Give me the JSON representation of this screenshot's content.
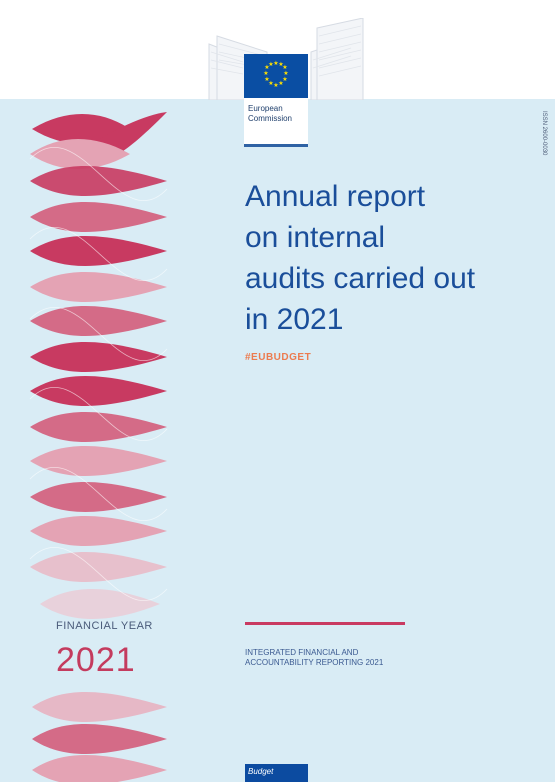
{
  "header": {
    "logo": {
      "brand": "European",
      "brand2": "Commission",
      "accent": "#0a4ea3"
    }
  },
  "side": {
    "issn": "ISSN 2600-0030"
  },
  "title_lines": [
    "Annual report",
    "on internal",
    "audits carried out",
    "in 2021"
  ],
  "hashtag": "#EUBUDGET",
  "financial_year": {
    "label": "FINANCIAL YEAR",
    "year": "2021"
  },
  "subtitle": {
    "line1": "INTEGRATED FINANCIAL AND",
    "line2": "ACCOUNTABILITY REPORTING 2021"
  },
  "badge": {
    "label": "Budget",
    "color": "#0c4ba0"
  },
  "colors": {
    "background_panel": "#d9ecf5",
    "title": "#1a4e9a",
    "hashtag": "#ec7b4f",
    "accent_red": "#c93a61"
  }
}
